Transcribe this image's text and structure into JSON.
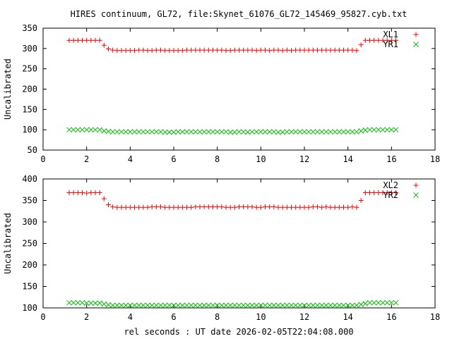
{
  "chart_data": [
    {
      "type": "scatter",
      "title": "HIRES continuum, GL72, file:Skynet_61076_GL72_145469_95827.cyb.txt",
      "xlabel": "",
      "ylabel": "Uncalibrated",
      "xlim": [
        0,
        18
      ],
      "ylim": [
        50,
        350
      ],
      "x_ticks": [
        "0",
        "2",
        "4",
        "6",
        "8",
        "10",
        "12",
        "14",
        "16",
        "18"
      ],
      "y_ticks": [
        "50",
        "100",
        "150",
        "200",
        "250",
        "300",
        "350"
      ],
      "legend_position": "top-right",
      "series": [
        {
          "name": "XL1",
          "marker": "plus",
          "color": "#ff0000",
          "x": [
            1.2,
            1.4,
            1.6,
            1.8,
            2.0,
            2.2,
            2.4,
            2.6,
            2.8,
            3.0,
            3.2,
            3.4,
            3.6,
            3.8,
            4.0,
            4.2,
            4.4,
            4.6,
            4.8,
            5.0,
            5.2,
            5.4,
            5.6,
            5.8,
            6.0,
            6.2,
            6.4,
            6.6,
            6.8,
            7.0,
            7.2,
            7.4,
            7.6,
            7.8,
            8.0,
            8.2,
            8.4,
            8.6,
            8.8,
            9.0,
            9.2,
            9.4,
            9.6,
            9.8,
            10.0,
            10.2,
            10.4,
            10.6,
            10.8,
            11.0,
            11.2,
            11.4,
            11.6,
            11.8,
            12.0,
            12.2,
            12.4,
            12.6,
            12.8,
            13.0,
            13.2,
            13.4,
            13.6,
            13.8,
            14.0,
            14.2,
            14.4,
            14.6,
            14.8,
            15.0,
            15.2,
            15.4,
            15.6,
            15.8,
            16.0,
            16.2
          ],
          "y": [
            320,
            320,
            320,
            320,
            320,
            320,
            320,
            320,
            308,
            299,
            296,
            295,
            295,
            295,
            295,
            295,
            296,
            296,
            295,
            295,
            296,
            296,
            295,
            295,
            295,
            295,
            295,
            296,
            296,
            296,
            296,
            296,
            296,
            296,
            296,
            296,
            295,
            295,
            296,
            296,
            296,
            296,
            296,
            295,
            296,
            296,
            295,
            296,
            296,
            295,
            296,
            295,
            296,
            296,
            296,
            296,
            296,
            296,
            296,
            296,
            296,
            296,
            296,
            296,
            296,
            296,
            295,
            309,
            320,
            320,
            320,
            320,
            320,
            320,
            320,
            320
          ]
        },
        {
          "name": "YR1",
          "marker": "cross",
          "color": "#00c000",
          "x": [
            1.2,
            1.4,
            1.6,
            1.8,
            2.0,
            2.2,
            2.4,
            2.6,
            2.8,
            3.0,
            3.2,
            3.4,
            3.6,
            3.8,
            4.0,
            4.2,
            4.4,
            4.6,
            4.8,
            5.0,
            5.2,
            5.4,
            5.6,
            5.8,
            6.0,
            6.2,
            6.4,
            6.6,
            6.8,
            7.0,
            7.2,
            7.4,
            7.6,
            7.8,
            8.0,
            8.2,
            8.4,
            8.6,
            8.8,
            9.0,
            9.2,
            9.4,
            9.6,
            9.8,
            10.0,
            10.2,
            10.4,
            10.6,
            10.8,
            11.0,
            11.2,
            11.4,
            11.6,
            11.8,
            12.0,
            12.2,
            12.4,
            12.6,
            12.8,
            13.0,
            13.2,
            13.4,
            13.6,
            13.8,
            14.0,
            14.2,
            14.4,
            14.6,
            14.8,
            15.0,
            15.2,
            15.4,
            15.6,
            15.8,
            16.0,
            16.2
          ],
          "y": [
            100,
            100,
            100,
            100,
            100,
            100,
            100,
            100,
            97,
            96,
            95,
            95,
            95,
            95,
            95,
            95,
            95,
            95,
            95,
            95,
            95,
            95,
            94,
            94,
            94,
            95,
            95,
            95,
            95,
            95,
            95,
            95,
            95,
            95,
            95,
            95,
            95,
            94,
            94,
            95,
            95,
            94,
            95,
            95,
            95,
            95,
            95,
            95,
            94,
            94,
            95,
            95,
            95,
            95,
            95,
            95,
            95,
            95,
            95,
            95,
            95,
            95,
            95,
            95,
            95,
            95,
            95,
            97,
            99,
            100,
            100,
            100,
            100,
            100,
            100,
            100
          ]
        }
      ]
    },
    {
      "type": "scatter",
      "title": "",
      "xlabel": "rel seconds : UT date 2026-02-05T22:04:08.000",
      "ylabel": "Uncalibrated",
      "xlim": [
        0,
        18
      ],
      "ylim": [
        100,
        400
      ],
      "x_ticks": [
        "0",
        "2",
        "4",
        "6",
        "8",
        "10",
        "12",
        "14",
        "16",
        "18"
      ],
      "y_ticks": [
        "100",
        "150",
        "200",
        "250",
        "300",
        "350",
        "400"
      ],
      "legend_position": "top-right",
      "series": [
        {
          "name": "XL2",
          "marker": "plus",
          "color": "#ff0000",
          "x": [
            1.2,
            1.4,
            1.6,
            1.8,
            2.0,
            2.2,
            2.4,
            2.6,
            2.8,
            3.0,
            3.2,
            3.4,
            3.6,
            3.8,
            4.0,
            4.2,
            4.4,
            4.6,
            4.8,
            5.0,
            5.2,
            5.4,
            5.6,
            5.8,
            6.0,
            6.2,
            6.4,
            6.6,
            6.8,
            7.0,
            7.2,
            7.4,
            7.6,
            7.8,
            8.0,
            8.2,
            8.4,
            8.6,
            8.8,
            9.0,
            9.2,
            9.4,
            9.6,
            9.8,
            10.0,
            10.2,
            10.4,
            10.6,
            10.8,
            11.0,
            11.2,
            11.4,
            11.6,
            11.8,
            12.0,
            12.2,
            12.4,
            12.6,
            12.8,
            13.0,
            13.2,
            13.4,
            13.6,
            13.8,
            14.0,
            14.2,
            14.4,
            14.6,
            14.8,
            15.0,
            15.2,
            15.4,
            15.6,
            15.8,
            16.0,
            16.2
          ],
          "y": [
            368,
            368,
            368,
            368,
            367,
            368,
            368,
            368,
            354,
            340,
            335,
            334,
            334,
            334,
            334,
            334,
            334,
            334,
            334,
            335,
            335,
            335,
            334,
            334,
            334,
            334,
            334,
            334,
            334,
            335,
            335,
            335,
            335,
            335,
            335,
            335,
            334,
            334,
            334,
            335,
            335,
            335,
            335,
            334,
            334,
            335,
            335,
            335,
            334,
            334,
            334,
            334,
            334,
            334,
            334,
            334,
            335,
            335,
            334,
            335,
            334,
            334,
            334,
            334,
            334,
            335,
            334,
            350,
            368,
            368,
            368,
            368,
            368,
            368,
            368,
            368
          ]
        },
        {
          "name": "YR2",
          "marker": "cross",
          "color": "#00c000",
          "x": [
            1.2,
            1.4,
            1.6,
            1.8,
            2.0,
            2.2,
            2.4,
            2.6,
            2.8,
            3.0,
            3.2,
            3.4,
            3.6,
            3.8,
            4.0,
            4.2,
            4.4,
            4.6,
            4.8,
            5.0,
            5.2,
            5.4,
            5.6,
            5.8,
            6.0,
            6.2,
            6.4,
            6.6,
            6.8,
            7.0,
            7.2,
            7.4,
            7.6,
            7.8,
            8.0,
            8.2,
            8.4,
            8.6,
            8.8,
            9.0,
            9.2,
            9.4,
            9.6,
            9.8,
            10.0,
            10.2,
            10.4,
            10.6,
            10.8,
            11.0,
            11.2,
            11.4,
            11.6,
            11.8,
            12.0,
            12.2,
            12.4,
            12.6,
            12.8,
            13.0,
            13.2,
            13.4,
            13.6,
            13.8,
            14.0,
            14.2,
            14.4,
            14.6,
            14.8,
            15.0,
            15.2,
            15.4,
            15.6,
            15.8,
            16.0,
            16.2
          ],
          "y": [
            112,
            112,
            112,
            112,
            111,
            111,
            111,
            111,
            109,
            107,
            106,
            106,
            106,
            106,
            106,
            106,
            106,
            106,
            106,
            106,
            106,
            106,
            106,
            106,
            106,
            106,
            106,
            106,
            106,
            106,
            106,
            106,
            106,
            106,
            106,
            106,
            106,
            106,
            106,
            106,
            106,
            106,
            106,
            106,
            106,
            106,
            106,
            106,
            106,
            106,
            106,
            106,
            106,
            106,
            106,
            106,
            106,
            106,
            106,
            106,
            106,
            106,
            106,
            106,
            106,
            106,
            106,
            108,
            110,
            112,
            112,
            112,
            112,
            112,
            112,
            112
          ]
        }
      ]
    }
  ]
}
